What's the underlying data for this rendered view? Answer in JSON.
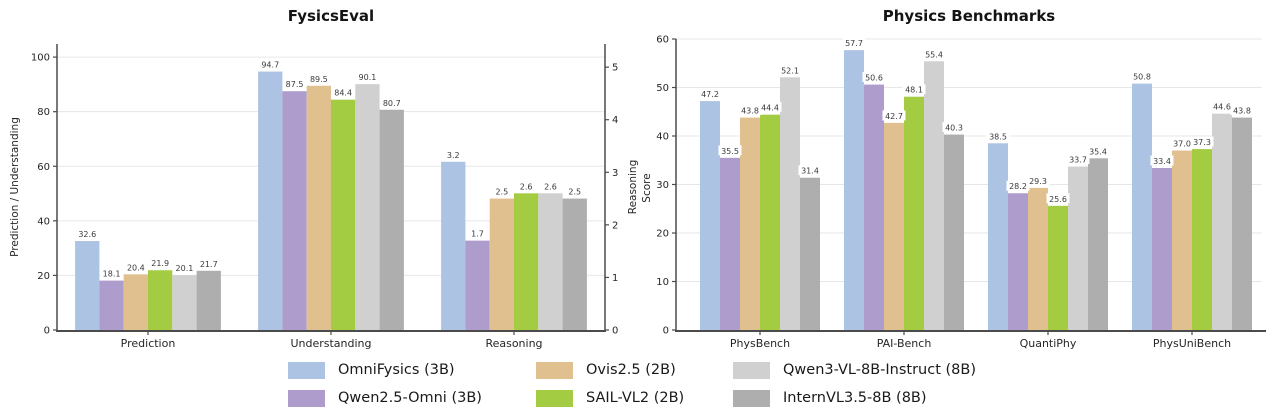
{
  "figure": {
    "background": "#ffffff",
    "grid_color": "#e7e7e7",
    "spine_color": "#4b4b4b",
    "legend_position": "bottom-center"
  },
  "chart_data": [
    {
      "type": "bar",
      "title": "FysicsEval",
      "categories": [
        "Prediction",
        "Understanding",
        "Reasoning"
      ],
      "axes": {
        "left": {
          "label": "Prediction / Understanding",
          "ticks": [
            0,
            20,
            40,
            60,
            80,
            100
          ],
          "range": [
            0,
            104.8
          ],
          "applies_to_categories": [
            "Prediction",
            "Understanding"
          ]
        },
        "right": {
          "label": "Reasoning",
          "ticks": [
            0,
            1,
            2,
            3,
            4,
            5
          ],
          "range": [
            0,
            5.44
          ],
          "applies_to_categories": [
            "Reasoning"
          ]
        }
      },
      "grid": true,
      "series": [
        {
          "name": "OmniFysics (3B)",
          "color": "#adc3e3",
          "values": [
            32.6,
            94.7,
            3.2
          ]
        },
        {
          "name": "Qwen2.5-Omni (3B)",
          "color": "#ae9dcc",
          "values": [
            18.1,
            87.5,
            1.7
          ]
        },
        {
          "name": "Ovis2.5 (2B)",
          "color": "#e0c08f",
          "values": [
            20.4,
            89.5,
            2.5
          ]
        },
        {
          "name": "SAIL-VL2 (2B)",
          "color": "#a3cc42",
          "values": [
            21.9,
            84.4,
            2.6
          ]
        },
        {
          "name": "Qwen3-VL-8B-Instruct (8B)",
          "color": "#d0d0d0",
          "values": [
            20.1,
            90.1,
            2.6
          ]
        },
        {
          "name": "InternVL3.5-8B (8B)",
          "color": "#aeaeae",
          "values": [
            21.7,
            80.7,
            2.5
          ]
        }
      ]
    },
    {
      "type": "bar",
      "title": "Physics Benchmarks",
      "categories": [
        "PhysBench",
        "PAI-Bench",
        "QuantiPhy",
        "PhysUniBench"
      ],
      "axes": {
        "left": {
          "label": "Score",
          "ticks": [
            0,
            10,
            20,
            30,
            40,
            50,
            60
          ],
          "range": [
            0,
            60
          ]
        }
      },
      "grid": true,
      "series": [
        {
          "name": "OmniFysics (3B)",
          "color": "#adc3e3",
          "values": [
            47.2,
            57.7,
            38.5,
            50.8
          ]
        },
        {
          "name": "Qwen2.5-Omni (3B)",
          "color": "#ae9dcc",
          "values": [
            35.5,
            50.6,
            28.2,
            33.4
          ]
        },
        {
          "name": "Ovis2.5 (2B)",
          "color": "#e0c08f",
          "values": [
            43.8,
            42.7,
            29.3,
            37.0
          ]
        },
        {
          "name": "SAIL-VL2 (2B)",
          "color": "#a3cc42",
          "values": [
            44.4,
            48.1,
            25.6,
            37.3
          ]
        },
        {
          "name": "Qwen3-VL-8B-Instruct (8B)",
          "color": "#d0d0d0",
          "values": [
            52.1,
            55.4,
            33.7,
            44.6
          ]
        },
        {
          "name": "InternVL3.5-8B (8B)",
          "color": "#aeaeae",
          "values": [
            31.4,
            40.3,
            35.4,
            43.8
          ]
        }
      ]
    }
  ]
}
